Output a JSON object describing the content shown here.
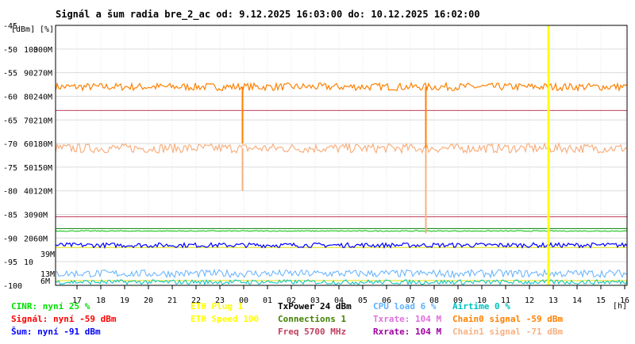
{
  "chart_data": {
    "type": "line",
    "title": "Signál a šum radia bre_2_ac od: 9.12.2025 16:03:00 do: 10.12.2025 16:02:00",
    "unit_label_left": "[dBm]",
    "unit_label_right": "[%]",
    "x_unit_label": "[h]",
    "x_tick_labels": [
      "17",
      "18",
      "19",
      "20",
      "21",
      "22",
      "23",
      "00",
      "01",
      "02",
      "03",
      "04",
      "05",
      "06",
      "07",
      "08",
      "09",
      "10",
      "11",
      "12",
      "13",
      "14",
      "15",
      "16"
    ],
    "dbm_ticks": [
      "-45",
      "-50",
      "-55",
      "-60",
      "-65",
      "-70",
      "-75",
      "-80",
      "-85",
      "-90",
      "-95",
      "-100"
    ],
    "dbm_values": [
      -45,
      -50,
      -55,
      -60,
      -65,
      -70,
      -75,
      -80,
      -85,
      -90,
      -95,
      -100
    ],
    "percent_ticks": [
      "100",
      "90",
      "80",
      "70",
      "60",
      "50",
      "40",
      "30",
      "20",
      "10"
    ],
    "rate_ticks": [
      "300M",
      "270M",
      "240M",
      "210M",
      "180M",
      "150M",
      "120M",
      "90M",
      "60M"
    ],
    "colored_rate_ticks": [
      {
        "label": "39M",
        "color": "#e070e0"
      },
      {
        "label": "13M",
        "color": "#e070e0"
      },
      {
        "label": "6M",
        "color": "#a000a0"
      }
    ],
    "ylim_dbm": [
      -100,
      -45
    ],
    "xlim_hours": [
      16.1,
      40.1
    ],
    "grid": true,
    "series": [
      {
        "name": "Signál",
        "color": "#ff8000",
        "level": -58,
        "noise": 0.8,
        "width": 1.2
      },
      {
        "name": "Chain1 signal",
        "color": "#f8b080",
        "level": -71,
        "noise": 1.0,
        "width": 1.2
      },
      {
        "name": "Šum",
        "color": "#0000ff",
        "level": -91.5,
        "noise": 0.5,
        "width": 1.2
      },
      {
        "name": "CINR",
        "color": "#00c000",
        "level": -88.5,
        "noise": 0.1,
        "width": 1
      },
      {
        "name": "CPU load",
        "color": "#60b0ff",
        "level": -97.5,
        "noise": 0.8,
        "width": 1
      },
      {
        "name": "Airtime",
        "color": "#00c0c0",
        "level": -99.3,
        "noise": 0.5,
        "width": 1
      }
    ],
    "reference_lines": [
      {
        "color": "#c04060",
        "level": -63
      },
      {
        "color": "#c04060",
        "level": -85.5
      },
      {
        "color": "#008000",
        "level": -88
      },
      {
        "color": "#e0e000",
        "level": -92
      },
      {
        "color": "#e0e000",
        "level": -99
      }
    ],
    "dips": [
      {
        "color": "#ff8000",
        "hour": 23.95,
        "to": -70
      },
      {
        "color": "#ff8000",
        "hour": 31.65,
        "to": -83
      },
      {
        "color": "#f8b080",
        "hour": 23.95,
        "to": -80
      },
      {
        "color": "#f8b080",
        "hour": 31.65,
        "to": -89
      }
    ],
    "marker_hour": 36.8,
    "marker_color": "#ffff00"
  },
  "legend": [
    {
      "text": "CINR: nyní 25 %",
      "color": "#00e000"
    },
    {
      "text": "Signál: nyní -59 dBm",
      "color": "#ff0000"
    },
    {
      "text": "Šum: nyní -91 dBm",
      "color": "#0000ff"
    },
    {
      "text": "ETH Plug 1",
      "color": "#ffff00"
    },
    {
      "text": "ETH Speed 100",
      "color": "#ffff00"
    },
    {
      "text": "TxPower 24 dBm",
      "color": "#000000"
    },
    {
      "text": "Connections 1",
      "color": "#408000"
    },
    {
      "text": "Freq 5700 MHz",
      "color": "#c04060"
    },
    {
      "text": "CPU load 6 %",
      "color": "#60b0ff"
    },
    {
      "text": "Txrate: 104 M",
      "color": "#e070e0"
    },
    {
      "text": "Rxrate: 104 M",
      "color": "#a000a0"
    },
    {
      "text": "Airtime 0 %",
      "color": "#00c0c0"
    },
    {
      "text": "Chain0 signal -59 dBm",
      "color": "#ff8000"
    },
    {
      "text": "Chain1 signal -71 dBm",
      "color": "#f8b080"
    }
  ]
}
